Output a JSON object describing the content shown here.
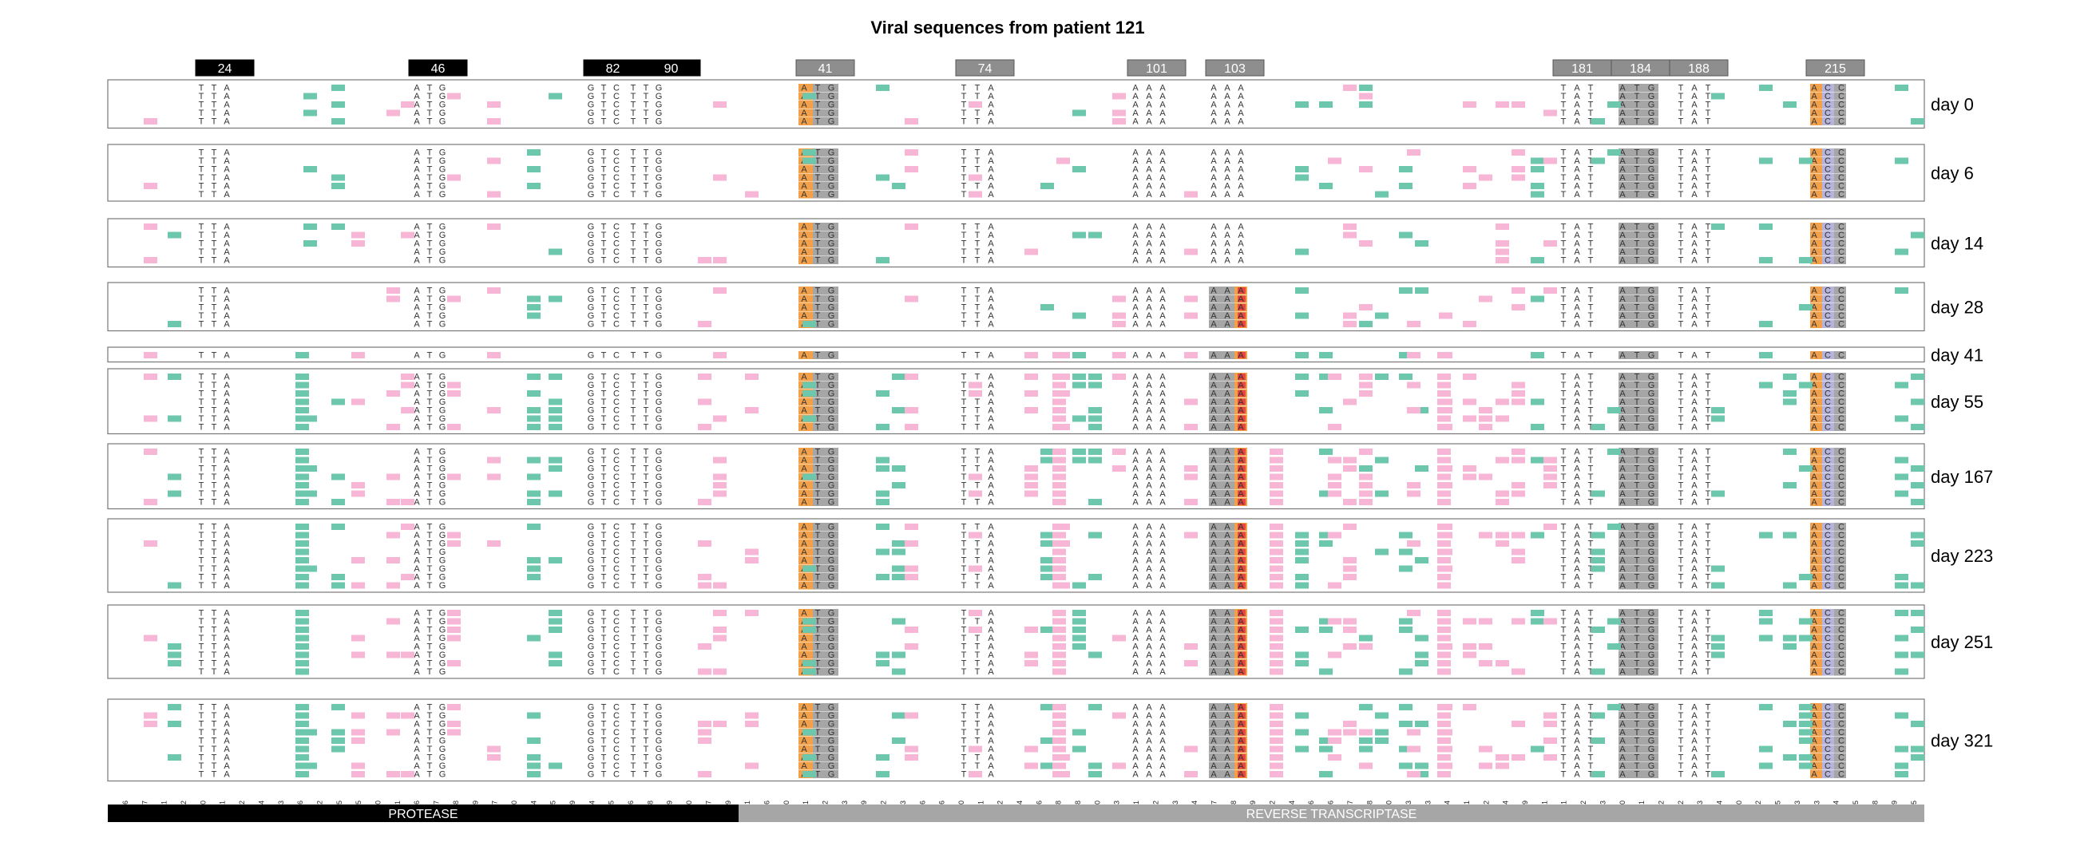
{
  "title": "Viral sequences from patient 121",
  "colors": {
    "teal": "#6cc7ad",
    "pink": "#f7b6d6",
    "orange": "#f3a04a",
    "gray": "#a6a6a6",
    "lavender": "#b7b4db",
    "red": "#e8463f",
    "blue": "#5a8fc7",
    "black": "#000000",
    "frame": "#777777"
  },
  "codon_headers": [
    {
      "label": "24",
      "style": "black",
      "positions": [
        70,
        71,
        72
      ]
    },
    {
      "label": "46",
      "style": "black",
      "positions": [
        136,
        137,
        138
      ]
    },
    {
      "label": "82",
      "style": "black",
      "positions": [
        244,
        245,
        246
      ]
    },
    {
      "label": "90",
      "style": "black",
      "positions": [
        268,
        269,
        270
      ]
    },
    {
      "label": "41",
      "style": "gray",
      "positions": [
        121,
        122,
        123
      ]
    },
    {
      "label": "74",
      "style": "gray",
      "positions": [
        220,
        221,
        222
      ]
    },
    {
      "label": "101",
      "style": "gray",
      "positions": [
        301,
        302,
        303
      ]
    },
    {
      "label": "103",
      "style": "gray",
      "positions": [
        307,
        308,
        309
      ]
    },
    {
      "label": "181",
      "style": "gray",
      "positions": [
        541,
        542,
        543
      ]
    },
    {
      "label": "184",
      "style": "gray",
      "positions": [
        550,
        551,
        552
      ]
    },
    {
      "label": "188",
      "style": "gray",
      "positions": [
        562,
        563,
        564
      ]
    },
    {
      "label": "215",
      "style": "gray",
      "positions": [
        643,
        644,
        645
      ]
    }
  ],
  "x_ticks": [
    "6",
    "7",
    "21",
    "62",
    "70",
    "71",
    "72",
    "84",
    "93",
    "96",
    "102",
    "105",
    "115",
    "120",
    "121",
    "136",
    "137",
    "138",
    "179",
    "187",
    "190",
    "204",
    "225",
    "229",
    "244",
    "245",
    "246",
    "268",
    "269",
    "270",
    "277",
    "289",
    "61",
    "66",
    "120",
    "121",
    "122",
    "123",
    "129",
    "162",
    "183",
    "186",
    "196",
    "220",
    "221",
    "222",
    "234",
    "246",
    "248",
    "258",
    "270",
    "293",
    "301",
    "302",
    "303",
    "304",
    "307",
    "308",
    "309",
    "322",
    "324",
    "336",
    "346",
    "367",
    "378",
    "390",
    "403",
    "423",
    "424",
    "441",
    "472",
    "484",
    "489",
    "501",
    "541",
    "542",
    "543",
    "550",
    "551",
    "552",
    "562",
    "563",
    "564",
    "570",
    "612",
    "625",
    "633",
    "643",
    "644",
    "645",
    "648",
    "669",
    "675"
  ],
  "regions": [
    {
      "label": "PROTEASE",
      "color": "#000000"
    },
    {
      "label": "REVERSE TRANSCRIPTASE",
      "color": "#a6a6a6"
    }
  ],
  "samples": [
    {
      "day": "day 0",
      "rows": 5
    },
    {
      "day": "day 6",
      "rows": 6
    },
    {
      "day": "day 14",
      "rows": 5
    },
    {
      "day": "day 28",
      "rows": 5
    },
    {
      "day": "day 41",
      "rows": 1
    },
    {
      "day": "day 55",
      "rows": 7
    },
    {
      "day": "day 167",
      "rows": 7
    },
    {
      "day": "day 223",
      "rows": 8
    },
    {
      "day": "day 251",
      "rows": 8
    },
    {
      "day": "day 321",
      "rows": 9
    }
  ],
  "reference": {
    "c24": [
      "T",
      "T",
      "A"
    ],
    "c46": [
      "A",
      "T",
      "G"
    ],
    "c82": [
      "G",
      "T",
      "C"
    ],
    "c90": [
      "T",
      "T",
      "G"
    ],
    "c41": [
      "A",
      "T",
      "G"
    ],
    "c74": [
      "T",
      "T",
      "A"
    ],
    "c101": [
      "A",
      "A",
      "A"
    ],
    "c103": [
      "A",
      "A",
      "A"
    ],
    "c181": [
      "T",
      "A",
      "T"
    ],
    "c184": [
      "A",
      "T",
      "G"
    ],
    "c188": [
      "T",
      "A",
      "T"
    ],
    "c215": [
      "A",
      "C",
      "C"
    ]
  },
  "legend_note": ""
}
